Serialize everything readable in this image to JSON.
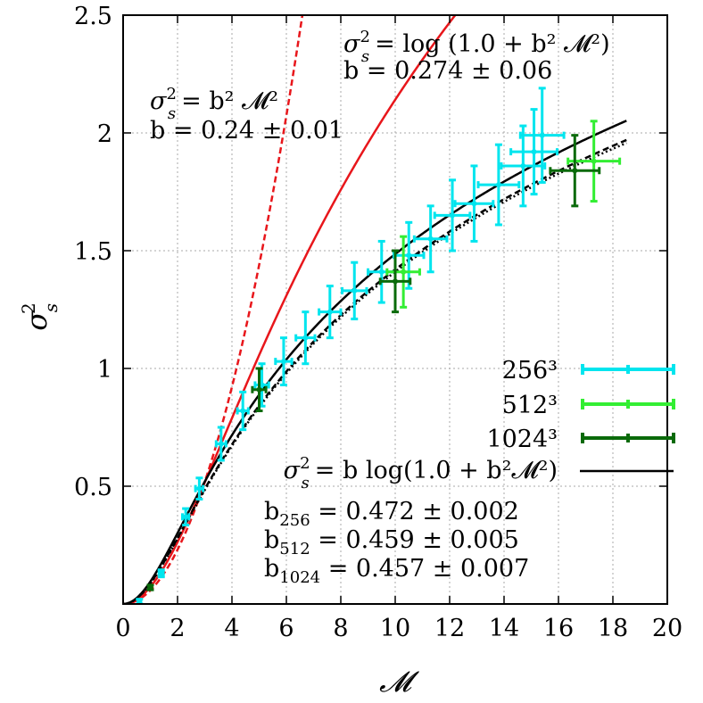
{
  "chart_data": {
    "type": "scatter",
    "xlabel": "𝓜",
    "ylabel": "σ",
    "ylabel_sub": "s",
    "ylabel_sup": "2",
    "xlim": [
      0,
      20
    ],
    "ylim": [
      0,
      2.5
    ],
    "x_ticks": [
      0,
      2,
      4,
      6,
      8,
      10,
      12,
      14,
      16,
      18,
      20
    ],
    "x_tick_labels": [
      "0",
      "2",
      "4",
      "6",
      "8",
      "10",
      "12",
      "14",
      "16",
      "18",
      "20"
    ],
    "y_ticks": [
      0.5,
      1,
      1.5,
      2,
      2.5
    ],
    "y_tick_labels": [
      "0.5",
      "1",
      "1.5",
      "2",
      "2.5"
    ],
    "grid": true,
    "legend_position": "right",
    "series": [
      {
        "name": "256³",
        "color": "#00e5ee",
        "points": [
          {
            "x": 0.6,
            "y": 0.01,
            "xerr": 0.05,
            "yerr": 0.01
          },
          {
            "x": 1.4,
            "y": 0.13,
            "xerr": 0.08,
            "yerr": 0.015
          },
          {
            "x": 2.3,
            "y": 0.37,
            "xerr": 0.12,
            "yerr": 0.035
          },
          {
            "x": 2.8,
            "y": 0.49,
            "xerr": 0.14,
            "yerr": 0.045
          },
          {
            "x": 3.6,
            "y": 0.68,
            "xerr": 0.18,
            "yerr": 0.07
          },
          {
            "x": 4.4,
            "y": 0.82,
            "xerr": 0.2,
            "yerr": 0.08
          },
          {
            "x": 5.1,
            "y": 0.93,
            "xerr": 0.25,
            "yerr": 0.09
          },
          {
            "x": 5.9,
            "y": 1.03,
            "xerr": 0.3,
            "yerr": 0.1
          },
          {
            "x": 6.7,
            "y": 1.13,
            "xerr": 0.35,
            "yerr": 0.11
          },
          {
            "x": 7.6,
            "y": 1.24,
            "xerr": 0.4,
            "yerr": 0.11
          },
          {
            "x": 8.5,
            "y": 1.33,
            "xerr": 0.45,
            "yerr": 0.12
          },
          {
            "x": 9.5,
            "y": 1.41,
            "xerr": 0.5,
            "yerr": 0.13
          },
          {
            "x": 10.5,
            "y": 1.48,
            "xerr": 0.55,
            "yerr": 0.14
          },
          {
            "x": 11.3,
            "y": 1.55,
            "xerr": 0.6,
            "yerr": 0.14
          },
          {
            "x": 12.1,
            "y": 1.65,
            "xerr": 0.65,
            "yerr": 0.15
          },
          {
            "x": 12.9,
            "y": 1.7,
            "xerr": 0.7,
            "yerr": 0.16
          },
          {
            "x": 13.8,
            "y": 1.78,
            "xerr": 0.75,
            "yerr": 0.17
          },
          {
            "x": 14.7,
            "y": 1.86,
            "xerr": 0.8,
            "yerr": 0.17
          },
          {
            "x": 15.1,
            "y": 1.92,
            "xerr": 0.85,
            "yerr": 0.18
          },
          {
            "x": 15.4,
            "y": 1.99,
            "xerr": 0.8,
            "yerr": 0.2
          }
        ]
      },
      {
        "name": "512³",
        "color": "#33ee33",
        "points": [
          {
            "x": 10.3,
            "y": 1.41,
            "xerr": 0.6,
            "yerr": 0.15
          },
          {
            "x": 17.3,
            "y": 1.88,
            "xerr": 0.95,
            "yerr": 0.17
          }
        ]
      },
      {
        "name": "1024³",
        "color": "#0a6a0a",
        "points": [
          {
            "x": 1.0,
            "y": 0.07,
            "xerr": 0.06,
            "yerr": 0.01
          },
          {
            "x": 5.0,
            "y": 0.91,
            "xerr": 0.25,
            "yerr": 0.09
          },
          {
            "x": 10.0,
            "y": 1.37,
            "xerr": 0.55,
            "yerr": 0.13
          },
          {
            "x": 16.6,
            "y": 1.84,
            "xerr": 0.9,
            "yerr": 0.15
          }
        ]
      }
    ],
    "curves": [
      {
        "kind": "linear-model",
        "b": 0.24,
        "style": "dashed",
        "color": "#e8161b"
      },
      {
        "kind": "log-model",
        "b": 0.274,
        "style": "solid",
        "color": "#e8161b"
      },
      {
        "kind": "b-log-model",
        "b": 0.472,
        "style": "solid",
        "color": "#000000",
        "legend": true
      },
      {
        "kind": "b-log-model",
        "b": 0.459,
        "style": "dashed",
        "color": "#000000"
      },
      {
        "kind": "b-log-model",
        "b": 0.457,
        "style": "dotted",
        "color": "#000000"
      }
    ],
    "legend": {
      "entries": [
        "256³",
        "512³",
        "1024³"
      ],
      "fit_lhs_main": "σ",
      "fit_lhs_sub": "s",
      "fit_lhs_sup": "2",
      "fit_rhs": "= b log(1.0 + b²𝓜²)"
    },
    "annotations": {
      "linear_lhs_main": "σ",
      "linear_lhs_sub": "s",
      "linear_lhs_sup": "2",
      "linear_rhs": "= b² 𝓜²",
      "linear_b": "b = 0.24 ± 0.01",
      "log_lhs_main": "σ",
      "log_lhs_sub": "s",
      "log_lhs_sup": "2",
      "log_rhs": "= log (1.0 + b² 𝓜²)",
      "log_b": "b = 0.274 ± 0.06",
      "fit_b_lines": [
        {
          "main": "b",
          "sub": "256",
          "rest": " = 0.472 ± 0.002"
        },
        {
          "main": "b",
          "sub": "512",
          "rest": " = 0.459 ± 0.005"
        },
        {
          "main": "b",
          "sub": "1024",
          "rest": " = 0.457 ± 0.007"
        }
      ]
    }
  }
}
